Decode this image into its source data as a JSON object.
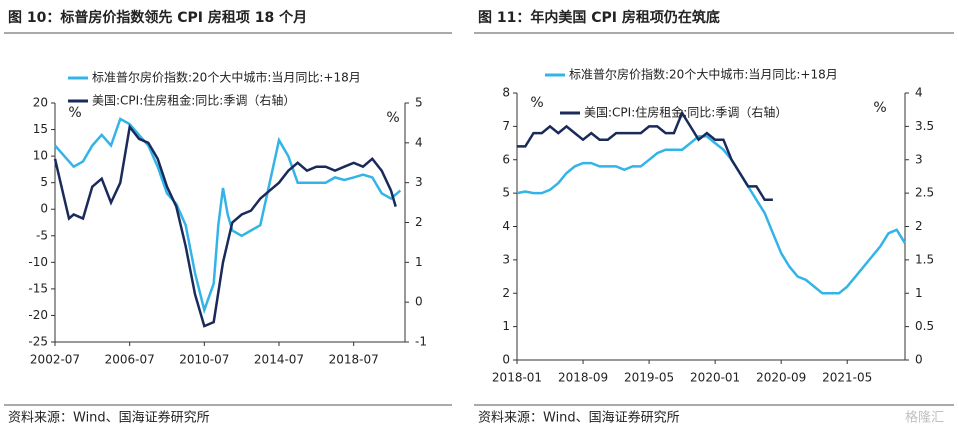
{
  "chart_data": [
    {
      "type": "line",
      "title": "图 10：标普房价指数领先 CPI 房租项 18 个月",
      "source": "资料来源：Wind、国海证券研究所",
      "y_label": "%",
      "y2_label": "%",
      "xlim": [
        "2002-07",
        "2021-04"
      ],
      "xticks": [
        "2002-07",
        "2006-07",
        "2010-07",
        "2014-07",
        "2018-07"
      ],
      "ylim": [
        -25,
        20
      ],
      "yticks": [
        20,
        15,
        10,
        5,
        0,
        -5,
        -10,
        -15,
        -20,
        -25
      ],
      "y2lim": [
        -1,
        5
      ],
      "y2ticks": [
        5,
        4,
        3,
        2,
        1,
        0,
        -1
      ],
      "series": [
        {
          "name": "标准普尔房价指数:20个大中城市:当月同比:+18月",
          "color": "#33b4e8",
          "x": [
            "2002-07",
            "2003-01",
            "2003-07",
            "2004-01",
            "2004-07",
            "2005-01",
            "2005-07",
            "2006-01",
            "2006-07",
            "2007-01",
            "2007-07",
            "2008-01",
            "2008-07",
            "2009-01",
            "2009-07",
            "2010-01",
            "2010-07",
            "2011-01",
            "2011-04",
            "2011-07",
            "2011-10",
            "2012-01",
            "2012-07",
            "2013-01",
            "2013-07",
            "2014-01",
            "2014-07",
            "2015-01",
            "2015-07",
            "2016-01",
            "2016-07",
            "2017-01",
            "2017-07",
            "2018-01",
            "2018-07",
            "2019-01",
            "2019-07",
            "2020-01",
            "2020-07",
            "2021-01"
          ],
          "values": [
            12,
            10,
            8,
            9,
            12,
            14,
            12,
            17,
            16,
            14,
            12,
            8,
            3,
            1,
            -3,
            -12,
            -19,
            -14,
            -3,
            4,
            -1,
            -4,
            -5,
            -4,
            -3,
            5,
            13,
            10,
            5,
            5,
            5,
            5,
            6,
            5.5,
            6,
            6.5,
            6,
            3,
            2,
            3.5
          ]
        },
        {
          "name": "美国:CPI:住房租金:同比:季调（右轴）",
          "color": "#1a2a5a",
          "axis": "y2",
          "x": [
            "2002-07",
            "2003-01",
            "2003-04",
            "2003-07",
            "2004-01",
            "2004-07",
            "2005-01",
            "2005-07",
            "2006-01",
            "2006-07",
            "2007-01",
            "2007-07",
            "2008-01",
            "2008-07",
            "2009-01",
            "2009-07",
            "2010-01",
            "2010-07",
            "2011-01",
            "2011-07",
            "2012-01",
            "2012-07",
            "2013-01",
            "2013-07",
            "2014-01",
            "2014-07",
            "2015-01",
            "2015-07",
            "2016-01",
            "2016-07",
            "2017-01",
            "2017-07",
            "2018-01",
            "2018-07",
            "2019-01",
            "2019-07",
            "2020-01",
            "2020-07",
            "2020-10"
          ],
          "values": [
            3.6,
            2.6,
            2.1,
            2.2,
            2.1,
            2.9,
            3.1,
            2.5,
            3.0,
            4.4,
            4.1,
            4.0,
            3.6,
            2.9,
            2.4,
            1.4,
            0.2,
            -0.6,
            -0.5,
            1.0,
            2.0,
            2.2,
            2.3,
            2.6,
            2.8,
            3.0,
            3.3,
            3.5,
            3.3,
            3.4,
            3.4,
            3.3,
            3.4,
            3.5,
            3.4,
            3.6,
            3.3,
            2.8,
            2.4
          ]
        }
      ]
    },
    {
      "type": "line",
      "title": "图 11：年内美国 CPI 房租项仍在筑底",
      "source": "资料来源：Wind、国海证券研究所",
      "y_label": "%",
      "y2_label": "%",
      "xlim": [
        "2018-01",
        "2021-12"
      ],
      "xticks": [
        "2018-01",
        "2018-09",
        "2019-05",
        "2020-01",
        "2020-09",
        "2021-05"
      ],
      "ylim": [
        0,
        8
      ],
      "yticks": [
        8,
        7,
        6,
        5,
        4,
        3,
        2,
        1,
        0
      ],
      "y2lim": [
        0,
        4
      ],
      "y2ticks": [
        4,
        3.5,
        3,
        2.5,
        2,
        1.5,
        1,
        0.5,
        0
      ],
      "series": [
        {
          "name": "标准普尔房价指数:20个大中城市:当月同比:+18月",
          "color": "#33b4e8",
          "x": [
            "2018-01",
            "2018-02",
            "2018-03",
            "2018-04",
            "2018-05",
            "2018-06",
            "2018-07",
            "2018-08",
            "2018-09",
            "2018-10",
            "2018-11",
            "2018-12",
            "2019-01",
            "2019-02",
            "2019-03",
            "2019-04",
            "2019-05",
            "2019-06",
            "2019-07",
            "2019-08",
            "2019-09",
            "2019-10",
            "2019-11",
            "2019-12",
            "2020-01",
            "2020-02",
            "2020-03",
            "2020-04",
            "2020-05",
            "2020-06",
            "2020-07",
            "2020-08",
            "2020-09",
            "2020-10",
            "2020-11",
            "2020-12",
            "2021-01",
            "2021-02",
            "2021-03",
            "2021-04",
            "2021-05",
            "2021-06",
            "2021-07",
            "2021-08",
            "2021-09",
            "2021-10",
            "2021-11",
            "2021-12"
          ],
          "values": [
            5.0,
            5.05,
            5.0,
            5.0,
            5.1,
            5.3,
            5.6,
            5.8,
            5.9,
            5.9,
            5.8,
            5.8,
            5.8,
            5.7,
            5.8,
            5.8,
            6.0,
            6.2,
            6.3,
            6.3,
            6.3,
            6.5,
            6.7,
            6.7,
            6.5,
            6.3,
            6.0,
            5.6,
            5.2,
            4.8,
            4.4,
            3.8,
            3.2,
            2.8,
            2.5,
            2.4,
            2.2,
            2.0,
            2.0,
            2.0,
            2.2,
            2.5,
            2.8,
            3.1,
            3.4,
            3.8,
            3.9,
            3.5
          ]
        },
        {
          "name": "美国:CPI:住房租金:同比:季调（右轴）",
          "color": "#1a2a5a",
          "axis": "y2",
          "x": [
            "2018-01",
            "2018-02",
            "2018-03",
            "2018-04",
            "2018-05",
            "2018-06",
            "2018-07",
            "2018-08",
            "2018-09",
            "2018-10",
            "2018-11",
            "2018-12",
            "2019-01",
            "2019-02",
            "2019-03",
            "2019-04",
            "2019-05",
            "2019-06",
            "2019-07",
            "2019-08",
            "2019-09",
            "2019-10",
            "2019-11",
            "2019-12",
            "2020-01",
            "2020-02",
            "2020-03",
            "2020-04",
            "2020-05",
            "2020-06",
            "2020-07",
            "2020-08"
          ],
          "values": [
            3.2,
            3.2,
            3.4,
            3.4,
            3.5,
            3.4,
            3.5,
            3.4,
            3.3,
            3.4,
            3.3,
            3.3,
            3.4,
            3.4,
            3.4,
            3.4,
            3.5,
            3.5,
            3.4,
            3.4,
            3.7,
            3.5,
            3.3,
            3.4,
            3.3,
            3.3,
            3.0,
            2.8,
            2.6,
            2.6,
            2.4,
            2.4
          ]
        }
      ]
    }
  ],
  "watermark": "格隆汇"
}
